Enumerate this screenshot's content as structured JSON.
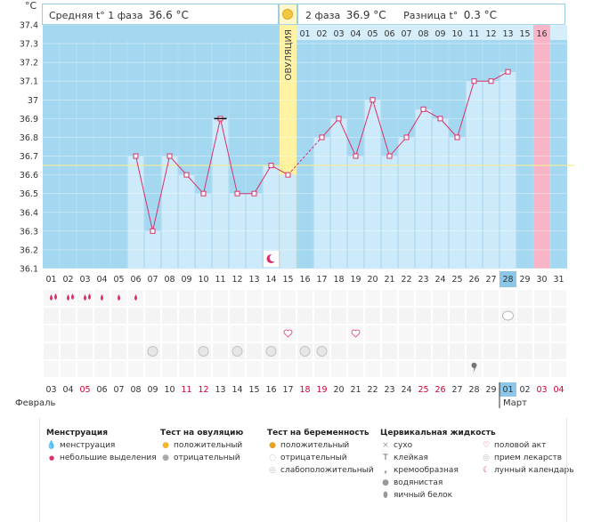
{
  "header": {
    "unit": "°C",
    "phase1_label": "Средняя t° 1 фаза",
    "phase1_value": "36.6 °C",
    "phase2_label": "2 фаза",
    "phase2_value": "36.9 °C",
    "diff_label": "Разница t°",
    "diff_value": "0.3 °C"
  },
  "chart_data": {
    "type": "bar",
    "title": "",
    "ylabel": "°C",
    "ylim": [
      36.1,
      37.4
    ],
    "yticks": [
      "36.1",
      "36.2",
      "36.3",
      "36.4",
      "36.5",
      "36.6",
      "36.7",
      "36.8",
      "36.9",
      "37",
      "37.1",
      "37.2",
      "37.3",
      "37.4"
    ],
    "cycle_days": [
      "01",
      "02",
      "03",
      "04",
      "05",
      "06",
      "07",
      "08",
      "09",
      "10",
      "11",
      "12",
      "13",
      "14",
      "15",
      "16",
      "17",
      "18",
      "19",
      "20",
      "21",
      "22",
      "23",
      "24",
      "25",
      "26",
      "27",
      "28",
      "29",
      "30",
      "31"
    ],
    "values": [
      null,
      null,
      null,
      null,
      null,
      36.7,
      36.3,
      36.7,
      36.6,
      36.5,
      36.9,
      36.5,
      36.5,
      36.65,
      36.6,
      null,
      36.8,
      36.9,
      36.7,
      37.0,
      36.7,
      36.8,
      36.95,
      36.9,
      36.8,
      37.1,
      37.1,
      37.15,
      null,
      null,
      null
    ],
    "coverline": 36.65,
    "ovulation_day": "15",
    "ovulation_label": "ОВУЛЯЦИЯ",
    "phase2_days": [
      "01",
      "02",
      "03",
      "04",
      "05",
      "06",
      "07",
      "08",
      "09",
      "10",
      "11",
      "12",
      "13",
      "15",
      "16"
    ],
    "highlight_day": "28",
    "period_day": "30",
    "dates": [
      "03",
      "04",
      "05",
      "06",
      "07",
      "08",
      "09",
      "10",
      "11",
      "12",
      "13",
      "14",
      "15",
      "16",
      "17",
      "18",
      "19",
      "20",
      "21",
      "22",
      "23",
      "24",
      "25",
      "26",
      "27",
      "28",
      "29",
      "01",
      "02",
      "03",
      "04"
    ],
    "weekend_indices": [
      2,
      8,
      9,
      15,
      16,
      22,
      23,
      29,
      30
    ],
    "month_feb": "Февраль",
    "month_mar": "Март",
    "series": [
      {
        "values": [
          null,
          null,
          null,
          null,
          null,
          36.7,
          36.3,
          36.7,
          36.6,
          36.5,
          36.9,
          36.5,
          36.5,
          36.65,
          36.6,
          null,
          36.8,
          36.9,
          36.7,
          37.0,
          36.7,
          36.8,
          36.95,
          36.9,
          36.8,
          37.1,
          37.1,
          37.15,
          null,
          null,
          null
        ]
      }
    ]
  },
  "symbols": {
    "menstruation_days": [
      1,
      2,
      3,
      4,
      5,
      6
    ],
    "menstruation_heavy_days": [
      1,
      2,
      3
    ],
    "pill_days": [
      28
    ],
    "heart_days": [
      15,
      19
    ],
    "ovtest_negative_days": [
      7,
      10,
      12,
      14,
      16,
      17
    ],
    "creamy_days": [
      26
    ],
    "moon_days": [
      14
    ]
  },
  "legend": {
    "menstruation": {
      "title": "Менструация",
      "items": [
        "менструация",
        "небольшие выделения"
      ]
    },
    "ovtest": {
      "title": "Тест на овуляцию",
      "items": [
        "положительный",
        "отрицательный"
      ]
    },
    "pregtest": {
      "title": "Тест на беременность",
      "items": [
        "положительный",
        "отрицательный",
        "слабоположительный"
      ]
    },
    "cervical": {
      "title": "Цервикальная жидкость",
      "items": [
        "сухо",
        "клейкая",
        "кремообразная",
        "водянистая",
        "яичный белок"
      ]
    },
    "other": {
      "items": [
        "половой акт",
        "прием лекарств",
        "лунный календарь"
      ]
    }
  },
  "colors": {
    "plot_bg": "#a4d8f0",
    "bar": "#cdeafa",
    "bar_edge": "#a9d6ef",
    "ovulation": "#fff2a0",
    "period": "#f7b5c7",
    "line": "#d8316a",
    "coverline": "#f5ee8c",
    "highlight": "#8cc7e8",
    "weekend": "#cc0033"
  }
}
